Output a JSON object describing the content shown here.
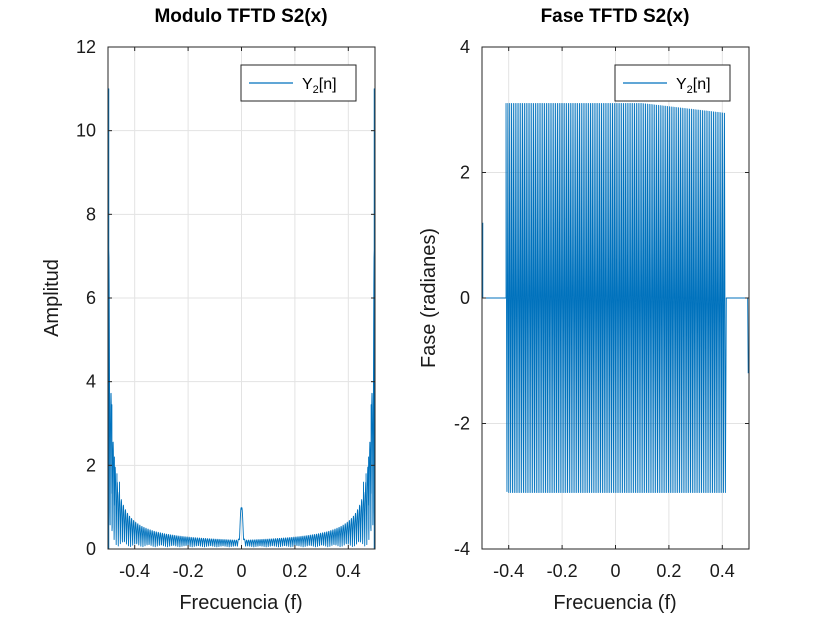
{
  "chart_data": [
    {
      "type": "line",
      "title": "Modulo TFTD S2(x)",
      "xlabel": "Frecuencia (f)",
      "ylabel": "Amplitud",
      "xlim": [
        -0.5,
        0.5
      ],
      "ylim": [
        0,
        12
      ],
      "xticks": [
        -0.4,
        -0.2,
        0,
        0.2,
        0.4
      ],
      "xtick_labels": [
        "-0.4",
        "-0.2",
        "0",
        "0.2",
        "0.4"
      ],
      "yticks": [
        0,
        2,
        4,
        6,
        8,
        10,
        12
      ],
      "ytick_labels": [
        "0",
        "2",
        "4",
        "6",
        "8",
        "10",
        "12"
      ],
      "grid": true,
      "legend": {
        "position": "top-right",
        "entries": [
          {
            "base": "Y",
            "sub": "2",
            "suffix": "[n]"
          }
        ]
      },
      "series_color": "#0072BD",
      "features": {
        "edge_peak": 11.0,
        "secondary_peaks": [
          3.45,
          2.2,
          1.8,
          1.6
        ],
        "center_peak": {
          "x": 0.0,
          "y": 0.9
        },
        "baseline_floor": 0.05,
        "oscillation_count": 130
      }
    },
    {
      "type": "line",
      "title": "Fase TFTD S2(x)",
      "xlabel": "Frecuencia (f)",
      "ylabel": "Fase (radianes)",
      "xlim": [
        -0.5,
        0.5
      ],
      "ylim": [
        -4,
        4
      ],
      "xticks": [
        -0.4,
        -0.2,
        0,
        0.2,
        0.4
      ],
      "xtick_labels": [
        "-0.4",
        "-0.2",
        "0",
        "0.2",
        "0.4"
      ],
      "yticks": [
        -4,
        -2,
        0,
        2,
        4
      ],
      "ytick_labels": [
        "-4",
        "-2",
        "0",
        "2",
        "4"
      ],
      "grid": true,
      "legend": {
        "position": "top-right",
        "entries": [
          {
            "base": "Y",
            "sub": "2",
            "suffix": "[n]"
          }
        ]
      },
      "series_color": "#0072BD",
      "features": {
        "flat_segments": [
          {
            "x": [
              -0.495,
              -0.41
            ],
            "y": 0
          },
          {
            "x": [
              0.415,
              0.495
            ],
            "y": 0
          }
        ],
        "start_value": 1.2,
        "end_value": -1.2,
        "top_envelope": [
          {
            "x": -0.41,
            "y": 3.1
          },
          {
            "x": -0.3,
            "y": 3.1
          },
          {
            "x": -0.2,
            "y": 3.1
          },
          {
            "x": -0.1,
            "y": 3.1
          },
          {
            "x": 0.0,
            "y": 3.1
          },
          {
            "x": 0.1,
            "y": 3.1
          },
          {
            "x": 0.2,
            "y": 3.05
          },
          {
            "x": 0.3,
            "y": 3.0
          },
          {
            "x": 0.5,
            "y": 2.9
          }
        ],
        "bottom_envelope": [
          {
            "x": -0.5,
            "y": -2.85
          },
          {
            "x": -0.4,
            "y": -3.1
          },
          {
            "x": -0.3,
            "y": -3.1
          },
          {
            "x": -0.2,
            "y": -3.1
          },
          {
            "x": -0.1,
            "y": -3.1
          },
          {
            "x": 0.0,
            "y": -3.1
          },
          {
            "x": 0.1,
            "y": -3.1
          },
          {
            "x": 0.2,
            "y": -3.1
          },
          {
            "x": 0.31,
            "y": -3.1
          }
        ],
        "oscillation_count": 120
      }
    }
  ]
}
